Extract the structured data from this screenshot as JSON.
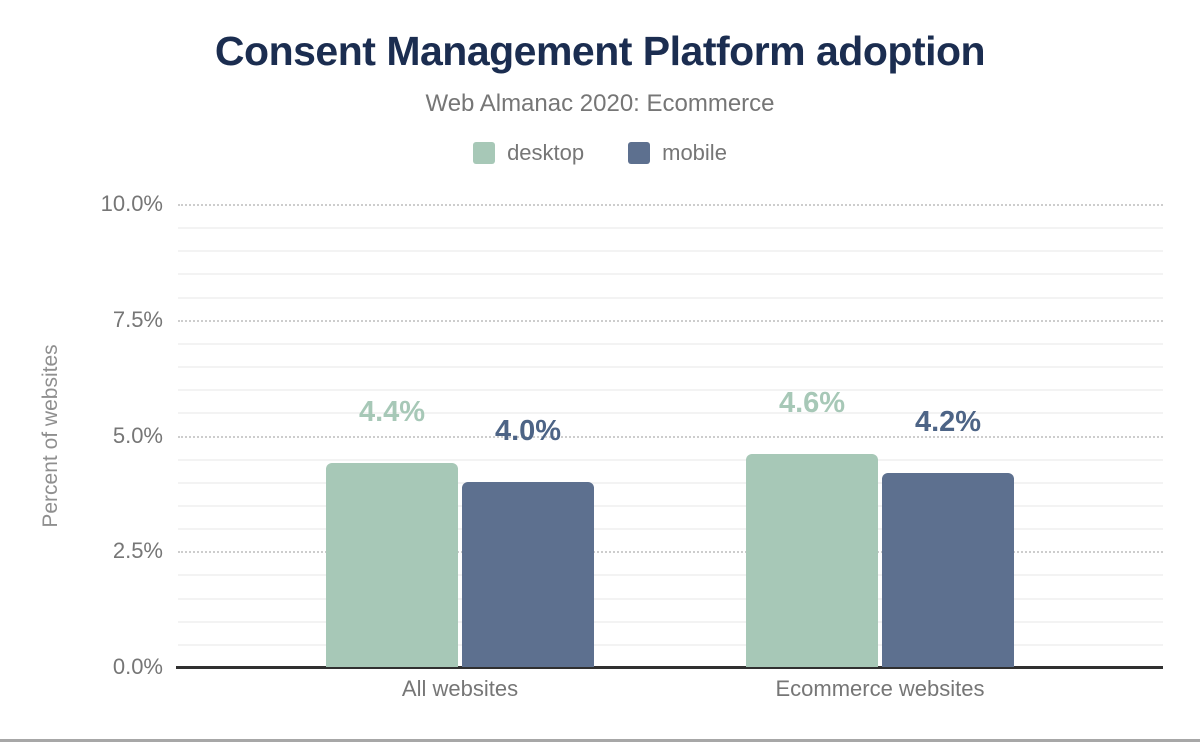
{
  "colors": {
    "title_navy": "#1b2d50",
    "muted_text": "#767676",
    "axis": "#303030",
    "desktop_green": "#a7c8b7",
    "mobile_slate": "#5d708f",
    "mobile_label": "#4d6486"
  },
  "chart_data": {
    "type": "bar",
    "title": "Consent Management Platform adoption",
    "subtitle": "Web Almanac 2020: Ecommerce",
    "categories": [
      "All websites",
      "Ecommerce websites"
    ],
    "series": [
      {
        "name": "desktop",
        "values": [
          4.4,
          4.6
        ],
        "labels": [
          "4.4%",
          "4.6%"
        ],
        "color": "#a7c8b7",
        "label_color": "#a7c8b7"
      },
      {
        "name": "mobile",
        "values": [
          4.0,
          4.2
        ],
        "labels": [
          "4.0%",
          "4.2%"
        ],
        "color": "#5d708f",
        "label_color": "#4d6486"
      }
    ],
    "xlabel": "",
    "ylabel": "Percent of websites",
    "ylim": [
      0,
      10
    ],
    "yticks": [
      {
        "value": 10,
        "label": "10.0%"
      },
      {
        "value": 7.5,
        "label": "7.5%"
      },
      {
        "value": 5,
        "label": "5.0%"
      },
      {
        "value": 2.5,
        "label": "2.5%"
      },
      {
        "value": 0,
        "label": "0.0%"
      }
    ],
    "grid": {
      "minor_step": 0.5,
      "major_step": 2.5,
      "minor_style": "solid",
      "major_style": "dotted"
    },
    "legend_position": "top",
    "value_labels": true
  }
}
